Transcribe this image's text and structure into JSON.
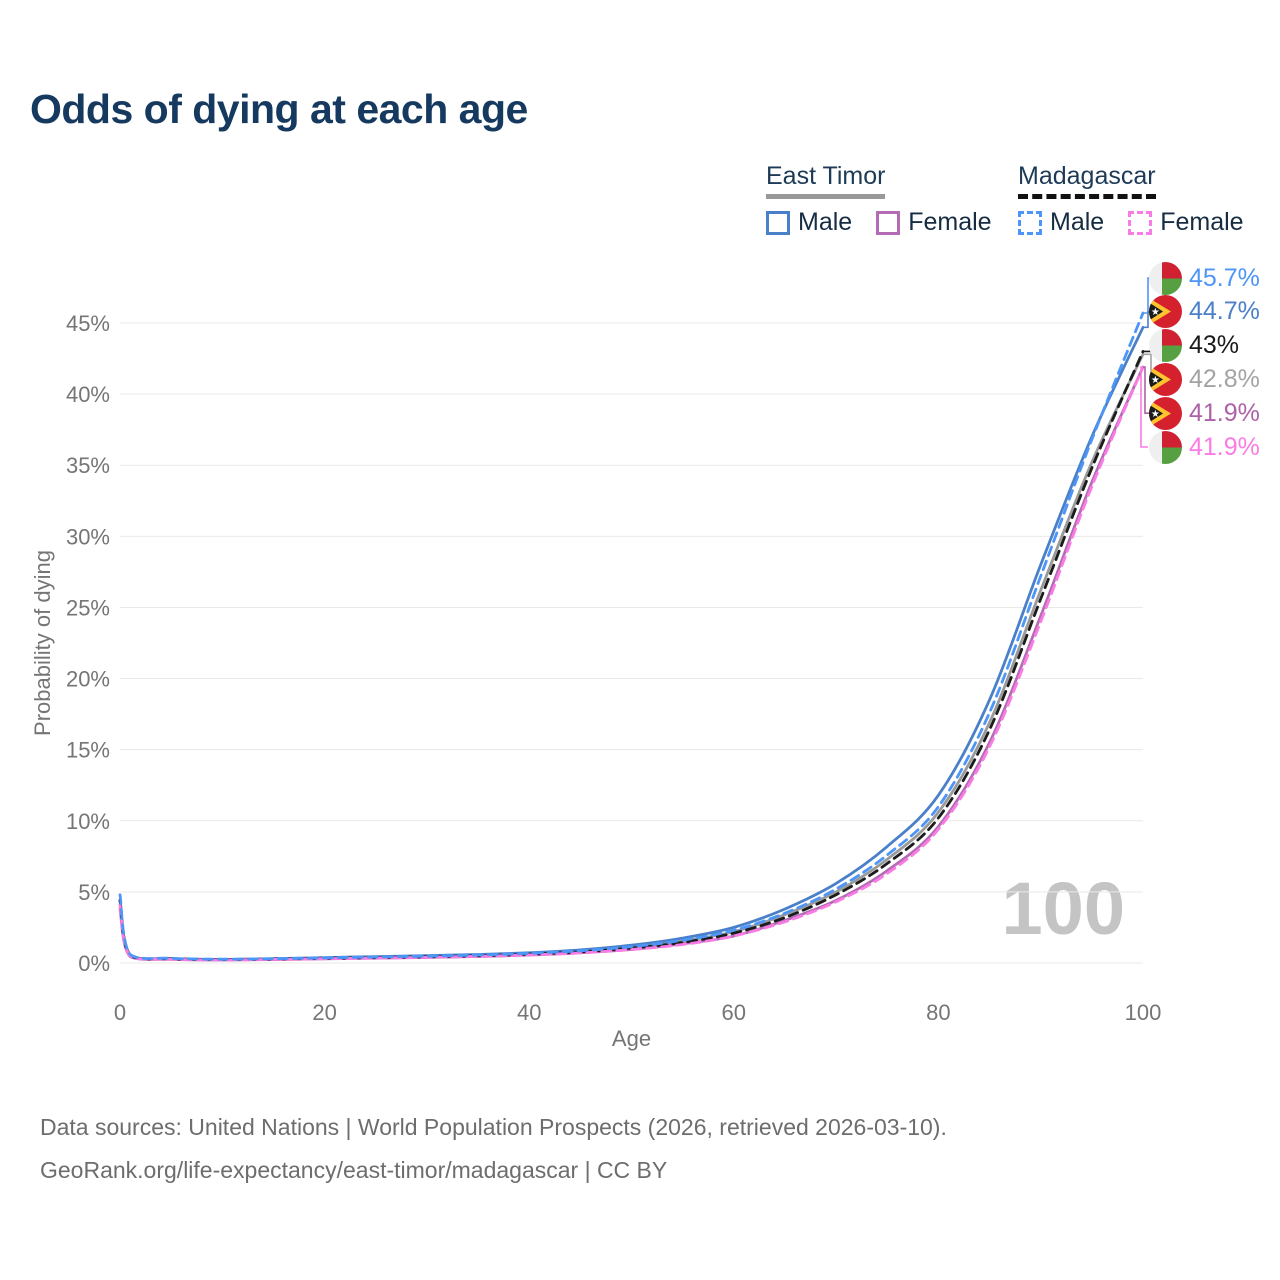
{
  "title": "Odds of dying at each age",
  "watermark": "100",
  "legend": {
    "groups": [
      {
        "country": "East Timor",
        "line_style": "solid",
        "items": [
          {
            "label": "Male",
            "color": "#4a80c9"
          },
          {
            "label": "Female",
            "color": "#b36cb4"
          }
        ]
      },
      {
        "country": "Madagascar",
        "line_style": "dashed",
        "items": [
          {
            "label": "Male",
            "color": "#4d95f7"
          },
          {
            "label": "Female",
            "color": "#fb7be4"
          }
        ]
      }
    ]
  },
  "axes": {
    "x": {
      "title": "Age",
      "ticks": [
        "0",
        "20",
        "40",
        "60",
        "80",
        "100"
      ],
      "tick_values": [
        0,
        20,
        40,
        60,
        80,
        100
      ],
      "range": [
        0,
        100
      ]
    },
    "y": {
      "title": "Probability of dying",
      "ticks": [
        "0%",
        "5%",
        "10%",
        "15%",
        "20%",
        "25%",
        "30%",
        "35%",
        "40%",
        "45%"
      ],
      "tick_values": [
        0,
        5,
        10,
        15,
        20,
        25,
        30,
        35,
        40,
        45
      ],
      "range_pct": [
        0,
        45
      ],
      "grid": true
    }
  },
  "end_labels": [
    {
      "text": "45.7%",
      "pct": 45.7,
      "series": "Madagascar Male",
      "flag": "madagascar",
      "color": "#4d95f7"
    },
    {
      "text": "44.7%",
      "pct": 44.7,
      "series": "East Timor Male",
      "flag": "east-timor",
      "color": "#4a80c9"
    },
    {
      "text": "43%",
      "pct": 43.0,
      "series": "Madagascar Both sexes",
      "flag": "madagascar",
      "color": "#1a1a1a"
    },
    {
      "text": "42.8%",
      "pct": 42.8,
      "series": "East Timor Both sexes",
      "flag": "east-timor",
      "color": "#a3a3a3"
    },
    {
      "text": "41.9%",
      "pct": 41.9,
      "series": "East Timor Female",
      "flag": "east-timor",
      "color": "#ad62a7"
    },
    {
      "text": "41.9%",
      "pct": 41.9,
      "series": "Madagascar Female",
      "flag": "madagascar",
      "color": "#fb7be4"
    }
  ],
  "footer": {
    "line1": "Data sources: United Nations | World Population Prospects (2026, retrieved 2026-03-10).",
    "line2": "GeoRank.org/life-expectancy/east-timor/madagascar | CC BY"
  },
  "chart_data": {
    "type": "line",
    "title": "Odds of dying at each age",
    "xlabel": "Age",
    "ylabel": "Probability of dying",
    "unit": "percent",
    "xlim": [
      0,
      100
    ],
    "ylim": [
      0,
      45
    ],
    "legend_position": "top-right",
    "grid": "horizontal",
    "x": [
      0,
      1,
      5,
      10,
      15,
      20,
      25,
      30,
      35,
      40,
      45,
      50,
      55,
      60,
      65,
      70,
      75,
      80,
      85,
      90,
      95,
      100
    ],
    "series": [
      {
        "id": "et_both",
        "name": "East Timor Both sexes",
        "country": "East Timor",
        "sex": "both",
        "style": "solid",
        "color": "#9a9a9a",
        "end_value_pct": 42.8,
        "values": [
          4.1,
          0.5,
          0.28,
          0.23,
          0.27,
          0.34,
          0.4,
          0.46,
          0.53,
          0.64,
          0.82,
          1.1,
          1.55,
          2.2,
          3.4,
          5.0,
          7.3,
          10.6,
          16.9,
          26.2,
          35.2,
          42.8
        ]
      },
      {
        "id": "et_female",
        "name": "East Timor Female",
        "country": "East Timor",
        "sex": "female",
        "style": "solid",
        "color": "#b36cb4",
        "end_value_pct": 41.9,
        "values": [
          3.8,
          0.45,
          0.25,
          0.21,
          0.24,
          0.29,
          0.34,
          0.39,
          0.46,
          0.56,
          0.72,
          0.95,
          1.35,
          1.9,
          3.0,
          4.4,
          6.5,
          9.6,
          15.5,
          24.4,
          33.8,
          41.9
        ]
      },
      {
        "id": "et_male",
        "name": "East Timor Male",
        "country": "East Timor",
        "sex": "male",
        "style": "solid",
        "color": "#4a80c9",
        "end_value_pct": 44.7,
        "values": [
          4.4,
          0.55,
          0.3,
          0.25,
          0.3,
          0.38,
          0.45,
          0.52,
          0.6,
          0.72,
          0.92,
          1.25,
          1.75,
          2.5,
          3.8,
          5.6,
          8.2,
          11.8,
          18.5,
          28.0,
          37.0,
          44.7
        ]
      },
      {
        "id": "mg_both",
        "name": "Madagascar Both sexes",
        "country": "Madagascar",
        "sex": "both",
        "style": "dashed",
        "color": "#1c1c1c",
        "end_value_pct": 43.0,
        "values": [
          4.4,
          0.55,
          0.3,
          0.25,
          0.28,
          0.33,
          0.38,
          0.44,
          0.51,
          0.62,
          0.78,
          1.05,
          1.45,
          2.1,
          3.2,
          4.8,
          7.0,
          10.2,
          16.4,
          25.6,
          34.8,
          43.0
        ]
      },
      {
        "id": "mg_female",
        "name": "Madagascar Female",
        "country": "Madagascar",
        "sex": "female",
        "style": "dashed",
        "color": "#fb7be4",
        "end_value_pct": 41.9,
        "values": [
          4.1,
          0.5,
          0.27,
          0.22,
          0.25,
          0.3,
          0.35,
          0.4,
          0.47,
          0.57,
          0.71,
          0.95,
          1.3,
          1.9,
          2.9,
          4.3,
          6.3,
          9.4,
          15.2,
          24.0,
          33.5,
          41.9
        ]
      },
      {
        "id": "mg_male",
        "name": "Madagascar Male",
        "country": "Madagascar",
        "sex": "male",
        "style": "dashed",
        "color": "#4d95f7",
        "end_value_pct": 45.7,
        "values": [
          4.8,
          0.6,
          0.33,
          0.27,
          0.3,
          0.36,
          0.42,
          0.48,
          0.56,
          0.68,
          0.86,
          1.15,
          1.6,
          2.3,
          3.5,
          5.2,
          7.6,
          11.0,
          17.6,
          27.2,
          36.8,
          45.7
        ]
      }
    ]
  }
}
